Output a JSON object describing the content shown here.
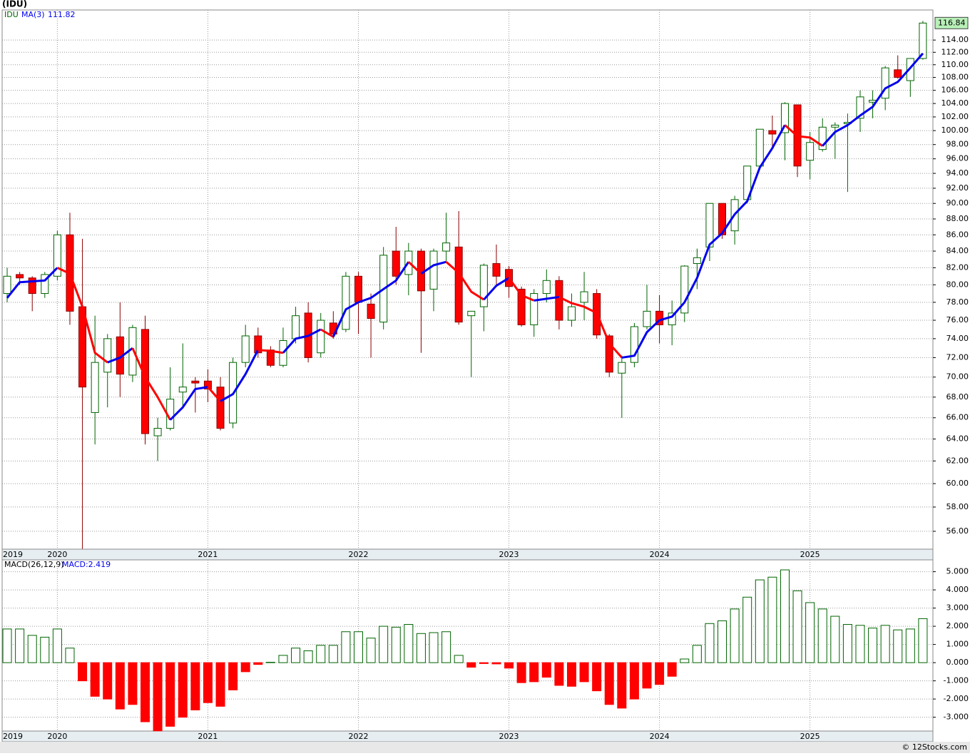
{
  "chart_data": [
    {
      "type": "candlestick",
      "title": "(IDU)",
      "symbol": "IDU",
      "log_scale": true,
      "grid": true,
      "up_color": "#006400",
      "down_color": "#ff0000",
      "xlim": [
        -0.4,
        73.8
      ],
      "xticks": [
        {
          "value": 0,
          "label": "2019"
        },
        {
          "value": 4,
          "label": "2020"
        },
        {
          "value": 16,
          "label": "2021"
        },
        {
          "value": 28,
          "label": "2022"
        },
        {
          "value": 40,
          "label": "2023"
        },
        {
          "value": 52,
          "label": "2024"
        },
        {
          "value": 64,
          "label": "2025"
        }
      ],
      "ylim": [
        54.57,
        119.07
      ],
      "yticks": [
        {
          "value": 56,
          "label": "56.00"
        },
        {
          "value": 58,
          "label": "58.00"
        },
        {
          "value": 60,
          "label": "60.00"
        },
        {
          "value": 62,
          "label": "62.00"
        },
        {
          "value": 64,
          "label": "64.00"
        },
        {
          "value": 66,
          "label": "66.00"
        },
        {
          "value": 68,
          "label": "68.00"
        },
        {
          "value": 70,
          "label": "70.00"
        },
        {
          "value": 72,
          "label": "72.00"
        },
        {
          "value": 74,
          "label": "74.00"
        },
        {
          "value": 76,
          "label": "76.00"
        },
        {
          "value": 78,
          "label": "78.00"
        },
        {
          "value": 80,
          "label": "80.00"
        },
        {
          "value": 82,
          "label": "82.00"
        },
        {
          "value": 84,
          "label": "84.00"
        },
        {
          "value": 86,
          "label": "86.00"
        },
        {
          "value": 88,
          "label": "88.00"
        },
        {
          "value": 90,
          "label": "90.00"
        },
        {
          "value": 92,
          "label": "92.00"
        },
        {
          "value": 94,
          "label": "94.00"
        },
        {
          "value": 96,
          "label": "96.00"
        },
        {
          "value": 98,
          "label": "98.00"
        },
        {
          "value": 100,
          "label": "100.00"
        },
        {
          "value": 102,
          "label": "102.00"
        },
        {
          "value": 104,
          "label": "104.00"
        },
        {
          "value": 106,
          "label": "106.00"
        },
        {
          "value": 108,
          "label": "108.00"
        },
        {
          "value": 110,
          "label": "110.00"
        },
        {
          "value": 112,
          "label": "112.00"
        },
        {
          "value": 114,
          "label": "114.00"
        }
      ],
      "open": [
        79,
        81.2,
        80.8,
        79,
        81,
        86,
        77.5,
        66.5,
        70.5,
        74.2,
        70.2,
        75,
        64.3,
        65,
        68.5,
        69.6,
        69.6,
        69,
        65.5,
        71.5,
        74.3,
        72.8,
        71.2,
        74,
        76.8,
        72.5,
        75.7,
        75,
        81,
        77.8,
        75.8,
        84,
        81.2,
        84,
        79.5,
        84,
        84.5,
        76.5,
        77.5,
        82.5,
        81.8,
        79.5,
        75.5,
        79,
        80.5,
        76,
        78,
        79,
        74.3,
        70.4,
        71.5,
        75.3,
        77,
        75.5,
        76.8,
        82.5,
        84.5,
        90,
        86.5,
        90.5,
        95,
        100,
        99.7,
        103.8,
        95.8,
        97.3,
        100.5,
        101,
        101.8,
        104.2,
        104.8,
        109.2,
        107.5,
        111
      ],
      "high": [
        82,
        81.5,
        81,
        81.5,
        86.5,
        88.8,
        85.5,
        76.5,
        74.5,
        78,
        75.5,
        76.5,
        66,
        71,
        73.5,
        70,
        70.8,
        70,
        72,
        75.5,
        75.2,
        73.2,
        75.2,
        77.5,
        78,
        76.8,
        77,
        81.5,
        81.5,
        79,
        84.5,
        87,
        85,
        84.3,
        84.3,
        88.8,
        89,
        77,
        82.5,
        84.8,
        82.2,
        79.8,
        79.5,
        81.8,
        81,
        79,
        81.5,
        79.5,
        74.5,
        72.2,
        75.7,
        80,
        78.8,
        78.2,
        82.3,
        84.3,
        90,
        90,
        91,
        95,
        100.2,
        102.2,
        104.2,
        103.8,
        99.8,
        101.8,
        101.2,
        102.5,
        106,
        106,
        109.8,
        111.5,
        111,
        117.2
      ],
      "low": [
        78,
        80,
        77,
        78.5,
        80.5,
        75.5,
        54.6,
        63.5,
        67,
        68,
        69.5,
        63.5,
        62,
        64.8,
        67,
        66.5,
        67.5,
        64.8,
        65,
        71,
        72,
        71,
        71,
        73.5,
        71.5,
        72,
        74,
        74.7,
        74.5,
        72,
        75,
        80,
        78.8,
        72.5,
        77,
        82.8,
        75.5,
        70,
        74.8,
        79.8,
        78.5,
        75.3,
        74.2,
        78,
        75,
        75.3,
        76,
        74,
        70,
        66,
        71,
        75,
        73.5,
        73.3,
        75.8,
        79.5,
        82.8,
        85.5,
        84.8,
        90,
        94.8,
        97.5,
        95.8,
        93.5,
        93.2,
        97,
        96,
        91.5,
        99.8,
        101.8,
        103,
        107.8,
        105,
        110.8
      ],
      "close": [
        81,
        80.8,
        79,
        81.2,
        86,
        77,
        69,
        71.5,
        74,
        70.3,
        75.2,
        64.5,
        65,
        67.8,
        69,
        69.4,
        68.8,
        65,
        71.5,
        74.3,
        72.5,
        71.2,
        73.8,
        76.5,
        72,
        76,
        74.5,
        81,
        78,
        76.2,
        83.5,
        81,
        84,
        79.3,
        84,
        85,
        75.8,
        77,
        82.3,
        81,
        79.8,
        75.5,
        79,
        80.5,
        76,
        77.5,
        79.2,
        74.4,
        70.5,
        71.5,
        75.3,
        77,
        75.5,
        76.8,
        82.2,
        83.2,
        90,
        86,
        90.5,
        95,
        100.2,
        99.5,
        104,
        95,
        98.3,
        100.5,
        100.8,
        101.2,
        105,
        104.5,
        109.5,
        108,
        111,
        116.84
      ],
      "ma": {
        "name": "MA(3)",
        "up_color": "#0000ee",
        "down_color": "#ff0000",
        "values": [
          78.5,
          80.3,
          80.4,
          80.5,
          82,
          81.3,
          77.5,
          72.5,
          71.5,
          72,
          73,
          70,
          68,
          65.8,
          67,
          68.8,
          69,
          67.6,
          68.3,
          70.3,
          72.8,
          72.7,
          72.5,
          74,
          74.3,
          75,
          74.2,
          77.2,
          78,
          78.5,
          79.5,
          80.5,
          82.7,
          81.3,
          82.3,
          82.7,
          81.4,
          79.2,
          78.3,
          79.9,
          80.8,
          78.8,
          78.2,
          78.4,
          78.6,
          77.9,
          77.5,
          76.8,
          73.5,
          72,
          72.2,
          74.7,
          76,
          76.4,
          78,
          80.8,
          84.8,
          86.2,
          88.6,
          90.3,
          94.8,
          97.5,
          100.8,
          99.2,
          99,
          97.8,
          99.8,
          100.8,
          102.2,
          103.5,
          106.3,
          107.3,
          109.5,
          111.82
        ]
      }
    },
    {
      "type": "bar",
      "title": "MACD(26,12,9)",
      "current_label": "MACD:2.419",
      "grid": true,
      "up_color": "#006400",
      "down_color": "#ff0000",
      "xlim": [
        -0.4,
        73.8
      ],
      "xticks": [
        {
          "value": 0,
          "label": "2019"
        },
        {
          "value": 4,
          "label": "2020"
        },
        {
          "value": 16,
          "label": "2021"
        },
        {
          "value": 28,
          "label": "2022"
        },
        {
          "value": 40,
          "label": "2023"
        },
        {
          "value": 52,
          "label": "2024"
        },
        {
          "value": 64,
          "label": "2025"
        }
      ],
      "ylim": [
        -3.76,
        5.65
      ],
      "yticks": [
        {
          "value": -3,
          "label": "-3.000"
        },
        {
          "value": -2,
          "label": "-2.000"
        },
        {
          "value": -1,
          "label": "-1.000"
        },
        {
          "value": 0,
          "label": "0.000"
        },
        {
          "value": 1,
          "label": "1.000"
        },
        {
          "value": 2,
          "label": "2.000"
        },
        {
          "value": 3,
          "label": "3.000"
        },
        {
          "value": 4,
          "label": "4.000"
        },
        {
          "value": 5,
          "label": "5.000"
        }
      ],
      "values": [
        1.85,
        1.85,
        1.5,
        1.4,
        1.85,
        0.8,
        -1.0,
        -1.85,
        -2.0,
        -2.55,
        -2.3,
        -3.25,
        -3.75,
        -3.5,
        -3.0,
        -2.6,
        -2.2,
        -2.4,
        -1.5,
        -0.5,
        -0.1,
        0.02,
        0.4,
        0.8,
        0.65,
        0.95,
        0.95,
        1.7,
        1.7,
        1.35,
        2.0,
        1.95,
        2.1,
        1.6,
        1.65,
        1.7,
        0.4,
        -0.25,
        -0.05,
        -0.07,
        -0.3,
        -1.1,
        -1.05,
        -0.8,
        -1.25,
        -1.3,
        -1.05,
        -1.55,
        -2.3,
        -2.5,
        -2.0,
        -1.4,
        -1.2,
        -0.75,
        0.2,
        0.95,
        2.15,
        2.3,
        2.95,
        3.6,
        4.55,
        4.7,
        5.1,
        3.95,
        3.3,
        2.95,
        2.55,
        2.1,
        2.05,
        1.9,
        2.05,
        1.8,
        1.85,
        2.419
      ]
    }
  ],
  "footer": "© 12Stocks.com"
}
